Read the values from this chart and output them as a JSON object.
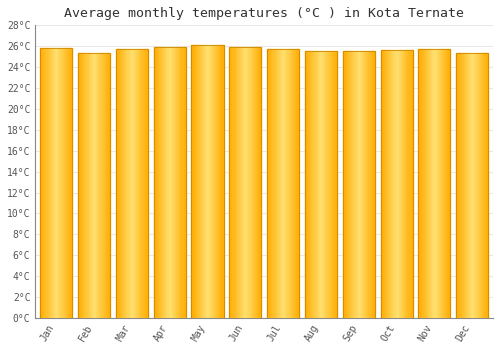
{
  "title": "Average monthly temperatures (°C ) in Kota Ternate",
  "months": [
    "Jan",
    "Feb",
    "Mar",
    "Apr",
    "May",
    "Jun",
    "Jul",
    "Aug",
    "Sep",
    "Oct",
    "Nov",
    "Dec"
  ],
  "values": [
    25.8,
    25.3,
    25.7,
    25.9,
    26.1,
    25.9,
    25.7,
    25.5,
    25.5,
    25.6,
    25.7,
    25.3
  ],
  "bar_color_center": "#FFE070",
  "bar_color_edge": "#FFAA00",
  "bar_border_color": "#CC8800",
  "background_color": "#FFFFFF",
  "plot_bg_color": "#FFFFFF",
  "grid_color": "#DDDDDD",
  "ytick_step": 2,
  "ymin": 0,
  "ymax": 28,
  "title_fontsize": 9.5,
  "tick_fontsize": 7,
  "font_family": "monospace",
  "bar_width": 0.85
}
